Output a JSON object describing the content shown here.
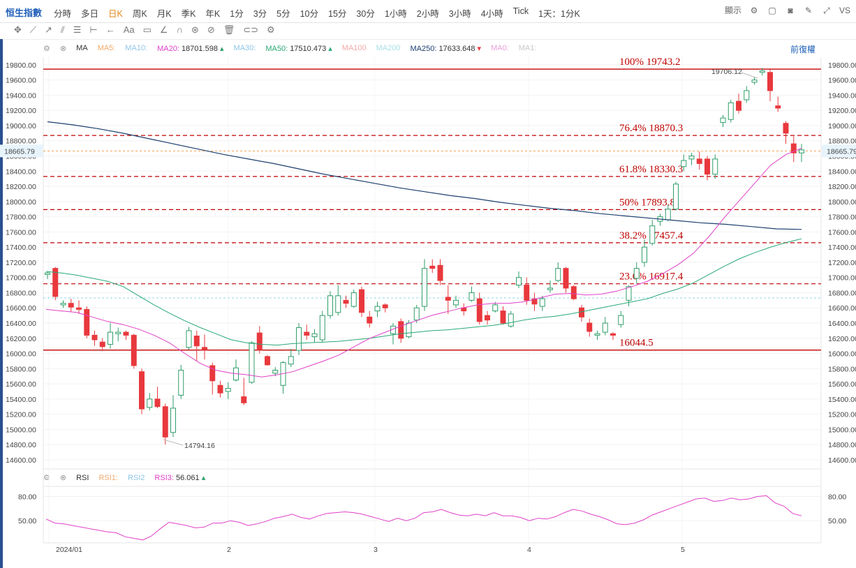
{
  "toolbar": {
    "symbol": "恒生指數",
    "periods": [
      "分時",
      "多日",
      "日K",
      "周K",
      "月K",
      "季K",
      "年K",
      "1分",
      "3分",
      "5分",
      "10分",
      "15分",
      "30分",
      "1小時",
      "2小時",
      "3小時",
      "4小時",
      "Tick",
      "1天：1分K"
    ],
    "active_period": "日K",
    "display_label": "顯示",
    "vs_label": "VS"
  },
  "ma_bar": {
    "label": "MA",
    "ma5": "MA5:",
    "ma10": "MA10:",
    "ma20": "MA20:",
    "ma20_value": "18701.598",
    "ma30": "MA30:",
    "ma50": "MA50:",
    "ma50_value": "17510.473",
    "ma100": "MA100",
    "ma200": "MA200",
    "ma250": "MA250:",
    "ma250_value": "17633.648",
    "ma0": "MA0:",
    "ma1": "MA1:",
    "adjust": "前復權"
  },
  "rsi_bar": {
    "label": "RSI",
    "rsi1": "RSI1:",
    "rsi2": "RSI2",
    "rsi3": "RSI3:",
    "rsi3_value": "56.061"
  },
  "colors": {
    "up": "#2f9e6a",
    "down": "#e8383d",
    "ma20": "#e040c8",
    "ma50": "#2aa876",
    "ma250": "#1d3f6e",
    "fib": "#c00000",
    "rsi": "#e040c8"
  },
  "chart_data": {
    "type": "candlestick",
    "y_ticks": [
      14600,
      14800,
      15000,
      15200,
      15400,
      15600,
      15800,
      16000,
      16200,
      16400,
      16600,
      16800,
      17000,
      17200,
      17400,
      17600,
      17800,
      18000,
      18200,
      18400,
      18600,
      18800,
      19000,
      19200,
      19400,
      19600,
      19800
    ],
    "ylim": [
      14480,
      19900
    ],
    "x_labels": [
      "2024/01",
      "2",
      "3",
      "4",
      "5"
    ],
    "last_price": "18665.79",
    "high_label": "19706.12",
    "low_label": "14794.16",
    "fib_levels": [
      {
        "label": "100% 19743.2",
        "value": 19743.2,
        "solid": true
      },
      {
        "label": "76.4% 18870.3",
        "value": 18870.3,
        "solid": false
      },
      {
        "label": "61.8% 18330.3",
        "value": 18330.3,
        "solid": false
      },
      {
        "label": "50% 17893.8",
        "value": 17893.8,
        "solid": false
      },
      {
        "label": "38.2% 17457.4",
        "value": 17457.4,
        "solid": false
      },
      {
        "label": "23.6% 16917.4",
        "value": 16917.4,
        "solid": false
      },
      {
        "label": "16044.5",
        "value": 16044.5,
        "solid": true
      }
    ],
    "candles": [
      [
        17040,
        17060,
        16980,
        17080
      ],
      [
        17120,
        16750,
        16700,
        17140
      ],
      [
        16640,
        16660,
        16600,
        16700
      ],
      [
        16660,
        16610,
        16550,
        16720
      ],
      [
        16600,
        16580,
        16520,
        16700
      ],
      [
        16580,
        16240,
        16200,
        16620
      ],
      [
        16240,
        16180,
        16100,
        16300
      ],
      [
        16150,
        16090,
        16030,
        16200
      ],
      [
        16120,
        16280,
        16060,
        16400
      ],
      [
        16260,
        16280,
        16160,
        16340
      ],
      [
        16280,
        16240,
        16180,
        16300
      ],
      [
        16240,
        15840,
        15800,
        16260
      ],
      [
        15760,
        15270,
        15200,
        15800
      ],
      [
        15290,
        15400,
        15250,
        15480
      ],
      [
        15400,
        15300,
        15280,
        15560
      ],
      [
        15300,
        14900,
        14800,
        15340
      ],
      [
        14960,
        15280,
        14900,
        15450
      ],
      [
        15450,
        15780,
        15400,
        15850
      ],
      [
        16080,
        16300,
        16050,
        16350
      ],
      [
        16230,
        16100,
        15900,
        16300
      ],
      [
        16080,
        16050,
        15920,
        16250
      ],
      [
        15840,
        15640,
        15460,
        15880
      ],
      [
        15580,
        15480,
        15420,
        15640
      ],
      [
        15500,
        15540,
        15400,
        15620
      ],
      [
        15650,
        15810,
        15630,
        15920
      ],
      [
        15430,
        15350,
        15320,
        15680
      ],
      [
        15620,
        16140,
        15600,
        16160
      ],
      [
        16270,
        16050,
        16000,
        16360
      ],
      [
        15960,
        15850,
        15840,
        15980
      ],
      [
        15740,
        15780,
        15700,
        15820
      ],
      [
        15580,
        15880,
        15470,
        15900
      ],
      [
        15860,
        15960,
        15820,
        16060
      ],
      [
        16040,
        16340,
        15980,
        16400
      ],
      [
        16280,
        16240,
        16180,
        16380
      ],
      [
        16220,
        16260,
        16150,
        16320
      ],
      [
        16180,
        16500,
        16140,
        16560
      ],
      [
        16500,
        16760,
        16460,
        16820
      ],
      [
        16540,
        16760,
        16500,
        16900
      ],
      [
        16700,
        16660,
        16600,
        16760
      ],
      [
        16620,
        16800,
        16600,
        16840
      ],
      [
        16840,
        16540,
        16480,
        16880
      ],
      [
        16480,
        16400,
        16340,
        16560
      ],
      [
        16560,
        16620,
        16480,
        16680
      ],
      [
        16640,
        16600,
        16540,
        16660
      ],
      [
        16260,
        16360,
        16120,
        16400
      ],
      [
        16420,
        16200,
        16140,
        16460
      ],
      [
        16220,
        16400,
        16200,
        16440
      ],
      [
        16440,
        16600,
        16400,
        16640
      ],
      [
        16620,
        17120,
        16560,
        17240
      ],
      [
        17150,
        17120,
        17060,
        17240
      ],
      [
        17160,
        16960,
        16900,
        17240
      ],
      [
        16740,
        16700,
        16520,
        16900
      ],
      [
        16640,
        16700,
        16600,
        16760
      ],
      [
        16600,
        16560,
        16500,
        16660
      ],
      [
        16700,
        16800,
        16680,
        16880
      ],
      [
        16720,
        16420,
        16380,
        16800
      ],
      [
        16500,
        16440,
        16380,
        16560
      ],
      [
        16560,
        16640,
        16540,
        16680
      ],
      [
        16560,
        16400,
        16380,
        16620
      ],
      [
        16360,
        16520,
        16340,
        16560
      ],
      [
        16900,
        17000,
        16860,
        17080
      ],
      [
        16900,
        16700,
        16640,
        17000
      ],
      [
        16720,
        16650,
        16560,
        16800
      ],
      [
        16620,
        16720,
        16560,
        16760
      ],
      [
        16840,
        16860,
        16800,
        16960
      ],
      [
        16960,
        17120,
        16940,
        17200
      ],
      [
        17120,
        16860,
        16800,
        17140
      ],
      [
        16880,
        16720,
        16700,
        16900
      ],
      [
        16600,
        16480,
        16420,
        16640
      ],
      [
        16400,
        16290,
        16220,
        16460
      ],
      [
        16240,
        16260,
        16180,
        16300
      ],
      [
        16280,
        16400,
        16240,
        16480
      ],
      [
        16260,
        16240,
        16180,
        16280
      ],
      [
        16380,
        16500,
        16340,
        16560
      ],
      [
        16700,
        16880,
        16620,
        16900
      ],
      [
        16990,
        17120,
        16920,
        17200
      ],
      [
        17200,
        17400,
        17140,
        17500
      ],
      [
        17450,
        17680,
        17420,
        17760
      ],
      [
        17740,
        17800,
        17680,
        17840
      ],
      [
        17760,
        17900,
        17740,
        17960
      ],
      [
        17900,
        18230,
        17880,
        18260
      ],
      [
        18460,
        18540,
        18400,
        18620
      ],
      [
        18560,
        18600,
        18480,
        18640
      ],
      [
        18560,
        18500,
        18420,
        18660
      ],
      [
        18560,
        18360,
        18280,
        18600
      ],
      [
        18360,
        18560,
        18300,
        18620
      ],
      [
        19040,
        19100,
        18980,
        19140
      ],
      [
        19080,
        19300,
        19040,
        19340
      ],
      [
        19320,
        19200,
        19160,
        19420
      ],
      [
        19340,
        19460,
        19300,
        19520
      ],
      [
        19570,
        19600,
        19540,
        19640
      ],
      [
        19700,
        19720,
        19660,
        19760
      ],
      [
        19700,
        19460,
        19320,
        19740
      ],
      [
        19260,
        19230,
        19180,
        19380
      ],
      [
        19030,
        18900,
        18760,
        19060
      ],
      [
        18760,
        18640,
        18520,
        18860
      ],
      [
        18640,
        18680,
        18520,
        18760
      ]
    ],
    "ma20": [
      16580,
      16560,
      16540,
      16480,
      16420,
      16380,
      16320,
      16240,
      16140,
      16000,
      15870,
      15780,
      15740,
      15720,
      15690,
      15720,
      15760,
      15830,
      15900,
      15980,
      16090,
      16200,
      16280,
      16360,
      16430,
      16500,
      16550,
      16600,
      16640,
      16660,
      16660,
      16680,
      16730,
      16780,
      16790,
      16770,
      16780,
      16820,
      16880,
      16950,
      17050,
      17170,
      17320,
      17540,
      17790,
      18020,
      18250,
      18480,
      18620,
      18702
    ],
    "ma50": [
      17080,
      17060,
      17030,
      16990,
      16950,
      16880,
      16760,
      16640,
      16530,
      16430,
      16340,
      16260,
      16180,
      16140,
      16120,
      16110,
      16130,
      16140,
      16150,
      16160,
      16180,
      16200,
      16230,
      16260,
      16280,
      16300,
      16310,
      16330,
      16350,
      16370,
      16400,
      16440,
      16470,
      16490,
      16520,
      16560,
      16600,
      16640,
      16680,
      16720,
      16790,
      16850,
      16930,
      17040,
      17150,
      17250,
      17330,
      17400,
      17460,
      17510
    ],
    "ma250": [
      19050,
      19010,
      18960,
      18900,
      18830,
      18760,
      18690,
      18620,
      18560,
      18500,
      18430,
      18360,
      18300,
      18240,
      18180,
      18130,
      18080,
      18040,
      17990,
      17950,
      17910,
      17880,
      17840,
      17810,
      17780,
      17750,
      17720,
      17700,
      17670,
      17640,
      17633
    ],
    "rsi": [
      52,
      47,
      46,
      44,
      42,
      40,
      38,
      36,
      35,
      30,
      28,
      26,
      31,
      40,
      48,
      46,
      44,
      41,
      42,
      47,
      47,
      50,
      48,
      44,
      46,
      49,
      53,
      55,
      58,
      54,
      52,
      56,
      59,
      60,
      61,
      60,
      58,
      55,
      52,
      49,
      53,
      50,
      53,
      60,
      61,
      64,
      60,
      57,
      56,
      58,
      56,
      60,
      56,
      56,
      54,
      50,
      53,
      52,
      55,
      60,
      64,
      62,
      58,
      55,
      51,
      46,
      45,
      47,
      51,
      57,
      61,
      65,
      69,
      73,
      77,
      78,
      74,
      75,
      78,
      76,
      77,
      80,
      81,
      72,
      68,
      59,
      56
    ]
  }
}
